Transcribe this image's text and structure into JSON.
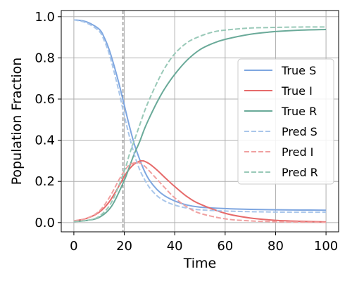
{
  "chart_data": {
    "type": "line",
    "title": "",
    "xlabel": "Time",
    "ylabel": "Population Fraction",
    "xlim": [
      -5,
      105
    ],
    "ylim": [
      -0.045,
      1.03
    ],
    "xticks": [
      0,
      20,
      40,
      60,
      80,
      100
    ],
    "xtick_labels": [
      "0",
      "20",
      "40",
      "60",
      "80",
      "100"
    ],
    "yticks": [
      0.0,
      0.2,
      0.4,
      0.6,
      0.8,
      1.0
    ],
    "ytick_labels": [
      "0.0",
      "0.2",
      "0.4",
      "0.6",
      "0.8",
      "1.0"
    ],
    "grid": true,
    "legend_position": "center-right",
    "vertical_line": {
      "x": 19.5,
      "style": "dashed",
      "color": "#808080"
    },
    "series": [
      {
        "name": "True S",
        "style": "solid",
        "color": "#7ea6e0",
        "x": [
          0,
          5,
          10,
          12,
          14,
          16,
          18,
          20,
          22,
          24,
          26,
          28,
          30,
          33,
          36,
          40,
          45,
          50,
          60,
          70,
          80,
          90,
          100
        ],
        "y": [
          0.985,
          0.975,
          0.94,
          0.9,
          0.84,
          0.76,
          0.67,
          0.57,
          0.47,
          0.38,
          0.31,
          0.25,
          0.205,
          0.16,
          0.13,
          0.105,
          0.085,
          0.075,
          0.068,
          0.064,
          0.062,
          0.061,
          0.06
        ]
      },
      {
        "name": "True I",
        "style": "solid",
        "color": "#e66a6a",
        "x": [
          0,
          5,
          10,
          14,
          18,
          20,
          22,
          24,
          26,
          27,
          28,
          30,
          33,
          36,
          40,
          45,
          50,
          60,
          70,
          80,
          90,
          100
        ],
        "y": [
          0.008,
          0.02,
          0.05,
          0.1,
          0.18,
          0.225,
          0.26,
          0.285,
          0.298,
          0.3,
          0.298,
          0.285,
          0.255,
          0.22,
          0.175,
          0.125,
          0.09,
          0.045,
          0.022,
          0.011,
          0.006,
          0.003
        ]
      },
      {
        "name": "True R",
        "style": "solid",
        "color": "#6aaa99",
        "x": [
          0,
          5,
          10,
          15,
          20,
          22,
          24,
          26,
          28,
          30,
          33,
          36,
          40,
          45,
          50,
          55,
          60,
          70,
          80,
          90,
          100
        ],
        "y": [
          0.005,
          0.01,
          0.025,
          0.08,
          0.205,
          0.27,
          0.335,
          0.39,
          0.455,
          0.51,
          0.585,
          0.65,
          0.72,
          0.79,
          0.84,
          0.87,
          0.89,
          0.915,
          0.928,
          0.935,
          0.938
        ]
      },
      {
        "name": "Pred S",
        "style": "dashed",
        "color": "#a9c6ea",
        "x": [
          0,
          5,
          10,
          12,
          14,
          16,
          18,
          20,
          22,
          24,
          26,
          28,
          30,
          33,
          36,
          40,
          45,
          50,
          60,
          70,
          80,
          90,
          100
        ],
        "y": [
          0.985,
          0.97,
          0.93,
          0.885,
          0.82,
          0.73,
          0.63,
          0.52,
          0.42,
          0.33,
          0.26,
          0.21,
          0.17,
          0.13,
          0.105,
          0.085,
          0.07,
          0.062,
          0.056,
          0.053,
          0.051,
          0.05,
          0.05
        ]
      },
      {
        "name": "Pred I",
        "style": "dashed",
        "color": "#f0a0a0",
        "x": [
          0,
          5,
          10,
          14,
          18,
          20,
          22,
          24,
          25,
          26,
          28,
          30,
          33,
          36,
          40,
          45,
          50,
          60,
          70,
          80,
          90,
          100
        ],
        "y": [
          0.008,
          0.02,
          0.055,
          0.12,
          0.21,
          0.25,
          0.28,
          0.29,
          0.292,
          0.29,
          0.275,
          0.25,
          0.21,
          0.17,
          0.12,
          0.075,
          0.045,
          0.018,
          0.008,
          0.004,
          0.002,
          0.001
        ]
      },
      {
        "name": "Pred R",
        "style": "dashed",
        "color": "#99c9b8",
        "x": [
          0,
          5,
          10,
          15,
          20,
          22,
          24,
          26,
          28,
          30,
          33,
          36,
          40,
          45,
          50,
          55,
          60,
          70,
          80,
          90,
          100
        ],
        "y": [
          0.005,
          0.01,
          0.03,
          0.1,
          0.25,
          0.33,
          0.4,
          0.47,
          0.54,
          0.6,
          0.68,
          0.75,
          0.82,
          0.875,
          0.905,
          0.925,
          0.935,
          0.945,
          0.948,
          0.95,
          0.95
        ]
      }
    ]
  }
}
